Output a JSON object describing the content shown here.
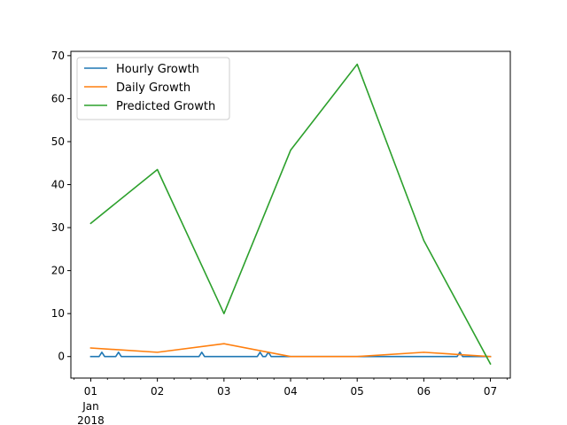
{
  "chart_data": {
    "type": "line",
    "title": "",
    "xlabel": "",
    "ylabel": "",
    "xlim": [
      "2017-12-31T16:50",
      "2018-01-07T07:10"
    ],
    "ylim": [
      -5,
      71
    ],
    "grid": false,
    "legend_position": "top-left",
    "x_ticks": [
      {
        "x": "2018-01-01",
        "label": "01",
        "sublabels": [
          "Jan",
          "2018"
        ]
      },
      {
        "x": "2018-01-02",
        "label": "02",
        "sublabels": []
      },
      {
        "x": "2018-01-03",
        "label": "03",
        "sublabels": []
      },
      {
        "x": "2018-01-04",
        "label": "04",
        "sublabels": []
      },
      {
        "x": "2018-01-05",
        "label": "05",
        "sublabels": []
      },
      {
        "x": "2018-01-06",
        "label": "06",
        "sublabels": []
      },
      {
        "x": "2018-01-07",
        "label": "07",
        "sublabels": []
      }
    ],
    "y_ticks": [
      0,
      10,
      20,
      30,
      40,
      50,
      60,
      70
    ],
    "series": [
      {
        "name": "Hourly Growth",
        "color": "#1f77b4",
        "points": [
          {
            "x": "2018-01-01T00:00",
            "y": 0
          },
          {
            "x": "2018-01-01T03:00",
            "y": 0
          },
          {
            "x": "2018-01-01T04:00",
            "y": 1
          },
          {
            "x": "2018-01-01T05:00",
            "y": 0
          },
          {
            "x": "2018-01-01T09:00",
            "y": 0
          },
          {
            "x": "2018-01-01T10:00",
            "y": 1
          },
          {
            "x": "2018-01-01T11:00",
            "y": 0
          },
          {
            "x": "2018-01-02T15:00",
            "y": 0
          },
          {
            "x": "2018-01-02T16:00",
            "y": 1
          },
          {
            "x": "2018-01-02T17:00",
            "y": 0
          },
          {
            "x": "2018-01-03T12:00",
            "y": 0
          },
          {
            "x": "2018-01-03T13:00",
            "y": 1
          },
          {
            "x": "2018-01-03T14:00",
            "y": 0
          },
          {
            "x": "2018-01-03T15:00",
            "y": 0
          },
          {
            "x": "2018-01-03T16:00",
            "y": 1
          },
          {
            "x": "2018-01-03T17:00",
            "y": 0
          },
          {
            "x": "2018-01-06T12:00",
            "y": 0
          },
          {
            "x": "2018-01-06T13:00",
            "y": 1
          },
          {
            "x": "2018-01-06T14:00",
            "y": 0
          },
          {
            "x": "2018-01-07T00:00",
            "y": 0
          }
        ]
      },
      {
        "name": "Daily Growth",
        "color": "#ff7f0e",
        "points": [
          {
            "x": "2018-01-01",
            "y": 2
          },
          {
            "x": "2018-01-02",
            "y": 1
          },
          {
            "x": "2018-01-03",
            "y": 3
          },
          {
            "x": "2018-01-04",
            "y": 0
          },
          {
            "x": "2018-01-05",
            "y": 0
          },
          {
            "x": "2018-01-06",
            "y": 1
          },
          {
            "x": "2018-01-07",
            "y": 0
          }
        ]
      },
      {
        "name": "Predicted Growth",
        "color": "#2ca02c",
        "points": [
          {
            "x": "2018-01-01",
            "y": 31
          },
          {
            "x": "2018-01-02",
            "y": 43.5
          },
          {
            "x": "2018-01-03",
            "y": 10
          },
          {
            "x": "2018-01-04",
            "y": 48
          },
          {
            "x": "2018-01-05",
            "y": 68
          },
          {
            "x": "2018-01-06",
            "y": 27
          },
          {
            "x": "2018-01-07",
            "y": -1.7
          }
        ]
      }
    ]
  }
}
